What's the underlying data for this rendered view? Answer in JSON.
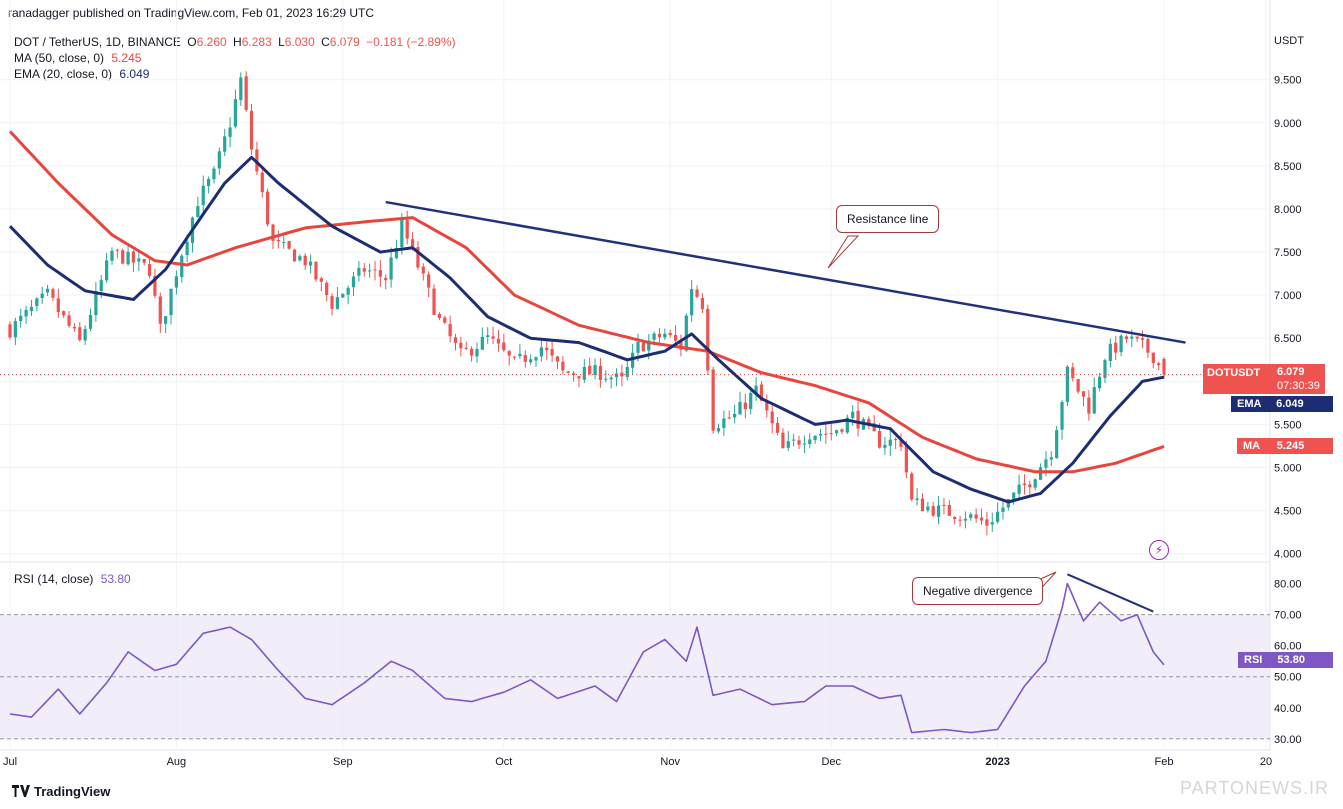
{
  "header": {
    "publisher": "ranadagger published on TradingView.com, Feb 01, 2023 16:29 UTC"
  },
  "legend": {
    "symbol": "DOT / TetherUS, 1D, BINANCE",
    "o_label": "O",
    "o": "6.260",
    "h_label": "H",
    "h": "6.283",
    "l_label": "L",
    "l": "6.030",
    "c_label": "C",
    "c": "6.079",
    "change": "−0.181 (−2.89%)",
    "ma_label": "MA (50, close, 0)",
    "ma_value": "5.245",
    "ema_label": "EMA (20, close, 0)",
    "ema_value": "6.049",
    "rsi_label": "RSI (14, close)",
    "rsi_value": "53.80"
  },
  "price_axis": {
    "currency": "USDT"
  },
  "badges": {
    "symbol_tag": "DOTUSDT",
    "price": "6.079",
    "countdown": "07:30:39",
    "ema_tag": "EMA",
    "ema_value": "6.049",
    "ma_tag": "MA",
    "ma_value": "5.245",
    "rsi_tag": "RSI",
    "rsi_value": "53.80"
  },
  "annotations": {
    "resistance": "Resistance line",
    "divergence": "Negative divergence"
  },
  "footer": {
    "brand": "TradingView"
  },
  "watermark": "PARTONEWS.IR",
  "colors": {
    "up": "#26a69a",
    "down": "#ef5350",
    "ema": "#1c2d73",
    "ma": "#e8453c",
    "rsi": "#7e57c2",
    "trend": "#22327a",
    "grid": "#f0f3fa",
    "rsi_band": "#ede7f6"
  },
  "chart_data": [
    {
      "type": "candlestick",
      "title": "DOT / TetherUS, 1D, BINANCE",
      "ylim": [
        3.95,
        10.1
      ],
      "y_ticks": [
        "9.500",
        "9.000",
        "8.500",
        "8.000",
        "7.500",
        "7.000",
        "6.500",
        "6.000",
        "5.500",
        "5.000",
        "4.500",
        "4.000"
      ],
      "x_ticks": [
        "Jul",
        "Aug",
        "Sep",
        "Oct",
        "Nov",
        "Dec",
        "2023",
        "Feb",
        "20"
      ],
      "x_tick_dates": [
        "2022-07-01",
        "2022-08-01",
        "2022-09-01",
        "2022-10-01",
        "2022-11-01",
        "2022-12-01",
        "2023-01-01",
        "2023-02-01",
        "2023-02-20"
      ],
      "x_range": [
        "2022-07-01",
        "2023-02-20"
      ],
      "close_anchors": [
        [
          "2022-07-01",
          6.6
        ],
        [
          "2022-07-08",
          7.0
        ],
        [
          "2022-07-14",
          6.45
        ],
        [
          "2022-07-20",
          7.5
        ],
        [
          "2022-07-27",
          7.3
        ],
        [
          "2022-07-29",
          6.6
        ],
        [
          "2022-08-02",
          7.5
        ],
        [
          "2022-08-05",
          8.1
        ],
        [
          "2022-08-08",
          8.4
        ],
        [
          "2022-08-11",
          9.0
        ],
        [
          "2022-08-13",
          9.5
        ],
        [
          "2022-08-15",
          8.7
        ],
        [
          "2022-08-19",
          7.6
        ],
        [
          "2022-08-25",
          7.4
        ],
        [
          "2022-08-30",
          6.9
        ],
        [
          "2022-09-05",
          7.3
        ],
        [
          "2022-09-09",
          7.2
        ],
        [
          "2022-09-12",
          7.8
        ],
        [
          "2022-09-14",
          7.5
        ],
        [
          "2022-09-19",
          6.7
        ],
        [
          "2022-09-23",
          6.3
        ],
        [
          "2022-09-28",
          6.5
        ],
        [
          "2022-10-03",
          6.2
        ],
        [
          "2022-10-08",
          6.4
        ],
        [
          "2022-10-12",
          6.1
        ],
        [
          "2022-10-19",
          6.1
        ],
        [
          "2022-10-23",
          6.0
        ],
        [
          "2022-10-26",
          6.4
        ],
        [
          "2022-10-31",
          6.55
        ],
        [
          "2022-11-03",
          6.4
        ],
        [
          "2022-11-05",
          7.1
        ],
        [
          "2022-11-07",
          6.9
        ],
        [
          "2022-11-09",
          5.5
        ],
        [
          "2022-11-13",
          5.6
        ],
        [
          "2022-11-17",
          5.9
        ],
        [
          "2022-11-22",
          5.2
        ],
        [
          "2022-11-27",
          5.4
        ],
        [
          "2022-12-01",
          5.4
        ],
        [
          "2022-12-05",
          5.6
        ],
        [
          "2022-12-10",
          5.3
        ],
        [
          "2022-12-14",
          5.3
        ],
        [
          "2022-12-16",
          4.6
        ],
        [
          "2022-12-21",
          4.5
        ],
        [
          "2022-12-26",
          4.45
        ],
        [
          "2022-12-30",
          4.35
        ],
        [
          "2023-01-03",
          4.6
        ],
        [
          "2023-01-07",
          4.85
        ],
        [
          "2023-01-11",
          5.2
        ],
        [
          "2023-01-14",
          6.1
        ],
        [
          "2023-01-18",
          5.7
        ],
        [
          "2023-01-21",
          6.3
        ],
        [
          "2023-01-25",
          6.5
        ],
        [
          "2023-01-28",
          6.4
        ],
        [
          "2023-01-30",
          6.3
        ],
        [
          "2023-02-01",
          6.079
        ]
      ],
      "last": {
        "open": 6.26,
        "high": 6.283,
        "low": 6.03,
        "close": 6.079
      },
      "series": [
        {
          "name": "MA (50, close, 0)",
          "last": 5.245,
          "anchors": [
            [
              "2022-07-01",
              8.9
            ],
            [
              "2022-07-10",
              8.3
            ],
            [
              "2022-07-20",
              7.7
            ],
            [
              "2022-07-28",
              7.4
            ],
            [
              "2022-08-03",
              7.35
            ],
            [
              "2022-08-12",
              7.55
            ],
            [
              "2022-08-25",
              7.78
            ],
            [
              "2022-09-05",
              7.85
            ],
            [
              "2022-09-14",
              7.9
            ],
            [
              "2022-09-24",
              7.55
            ],
            [
              "2022-10-03",
              7.0
            ],
            [
              "2022-10-15",
              6.65
            ],
            [
              "2022-10-28",
              6.45
            ],
            [
              "2022-11-08",
              6.35
            ],
            [
              "2022-11-18",
              6.1
            ],
            [
              "2022-11-28",
              5.95
            ],
            [
              "2022-12-08",
              5.75
            ],
            [
              "2022-12-18",
              5.35
            ],
            [
              "2022-12-28",
              5.1
            ],
            [
              "2023-01-08",
              4.95
            ],
            [
              "2023-01-15",
              4.95
            ],
            [
              "2023-01-23",
              5.05
            ],
            [
              "2023-02-01",
              5.245
            ]
          ]
        },
        {
          "name": "EMA (20, close, 0)",
          "last": 6.049,
          "anchors": [
            [
              "2022-07-01",
              7.8
            ],
            [
              "2022-07-08",
              7.35
            ],
            [
              "2022-07-15",
              7.05
            ],
            [
              "2022-07-24",
              6.95
            ],
            [
              "2022-07-30",
              7.3
            ],
            [
              "2022-08-05",
              7.85
            ],
            [
              "2022-08-10",
              8.3
            ],
            [
              "2022-08-15",
              8.6
            ],
            [
              "2022-08-20",
              8.3
            ],
            [
              "2022-08-30",
              7.8
            ],
            [
              "2022-09-08",
              7.5
            ],
            [
              "2022-09-14",
              7.55
            ],
            [
              "2022-09-21",
              7.2
            ],
            [
              "2022-09-28",
              6.75
            ],
            [
              "2022-10-06",
              6.5
            ],
            [
              "2022-10-15",
              6.45
            ],
            [
              "2022-10-24",
              6.25
            ],
            [
              "2022-10-31",
              6.35
            ],
            [
              "2022-11-05",
              6.55
            ],
            [
              "2022-11-10",
              6.25
            ],
            [
              "2022-11-18",
              5.8
            ],
            [
              "2022-11-28",
              5.5
            ],
            [
              "2022-12-04",
              5.55
            ],
            [
              "2022-12-12",
              5.45
            ],
            [
              "2022-12-20",
              4.95
            ],
            [
              "2022-12-27",
              4.75
            ],
            [
              "2023-01-03",
              4.6
            ],
            [
              "2023-01-09",
              4.7
            ],
            [
              "2023-01-15",
              5.05
            ],
            [
              "2023-01-22",
              5.6
            ],
            [
              "2023-01-28",
              6.0
            ],
            [
              "2023-02-01",
              6.049
            ]
          ]
        }
      ],
      "trendline": {
        "label": "Resistance line",
        "points": [
          [
            "2022-09-09",
            8.08
          ],
          [
            "2023-02-05",
            6.45
          ]
        ]
      }
    },
    {
      "type": "line",
      "title": "RSI (14, close)",
      "ylim": [
        28,
        86
      ],
      "y_ticks": [
        "80.00",
        "70.00",
        "60.00",
        "50.00",
        "40.00",
        "30.00"
      ],
      "band": [
        30,
        70
      ],
      "series": [
        {
          "name": "RSI (14, close)",
          "last": 53.8,
          "anchors": [
            [
              "2022-07-01",
              38
            ],
            [
              "2022-07-05",
              37
            ],
            [
              "2022-07-10",
              46
            ],
            [
              "2022-07-14",
              38
            ],
            [
              "2022-07-19",
              48
            ],
            [
              "2022-07-23",
              58
            ],
            [
              "2022-07-28",
              52
            ],
            [
              "2022-08-01",
              54
            ],
            [
              "2022-08-06",
              64
            ],
            [
              "2022-08-11",
              66
            ],
            [
              "2022-08-15",
              62
            ],
            [
              "2022-08-20",
              52
            ],
            [
              "2022-08-25",
              43
            ],
            [
              "2022-08-30",
              41
            ],
            [
              "2022-09-05",
              48
            ],
            [
              "2022-09-10",
              55
            ],
            [
              "2022-09-14",
              52
            ],
            [
              "2022-09-20",
              43
            ],
            [
              "2022-09-25",
              42
            ],
            [
              "2022-10-01",
              45
            ],
            [
              "2022-10-06",
              49
            ],
            [
              "2022-10-11",
              43
            ],
            [
              "2022-10-18",
              47
            ],
            [
              "2022-10-22",
              42
            ],
            [
              "2022-10-27",
              58
            ],
            [
              "2022-10-31",
              62
            ],
            [
              "2022-11-04",
              55
            ],
            [
              "2022-11-06",
              66
            ],
            [
              "2022-11-09",
              44
            ],
            [
              "2022-11-14",
              46
            ],
            [
              "2022-11-20",
              41
            ],
            [
              "2022-11-26",
              42
            ],
            [
              "2022-11-30",
              47
            ],
            [
              "2022-12-05",
              47
            ],
            [
              "2022-12-10",
              43
            ],
            [
              "2022-12-14",
              44
            ],
            [
              "2022-12-16",
              32
            ],
            [
              "2022-12-22",
              33
            ],
            [
              "2022-12-27",
              32
            ],
            [
              "2023-01-01",
              33
            ],
            [
              "2023-01-06",
              47
            ],
            [
              "2023-01-10",
              55
            ],
            [
              "2023-01-13",
              72
            ],
            [
              "2023-01-14",
              80
            ],
            [
              "2023-01-17",
              68
            ],
            [
              "2023-01-20",
              74
            ],
            [
              "2023-01-24",
              68
            ],
            [
              "2023-01-27",
              70
            ],
            [
              "2023-01-30",
              58
            ],
            [
              "2023-02-01",
              53.8
            ]
          ]
        }
      ],
      "divergence": {
        "label": "Negative divergence",
        "points": [
          [
            "2023-01-14",
            83
          ],
          [
            "2023-01-30",
            71
          ]
        ]
      }
    }
  ]
}
